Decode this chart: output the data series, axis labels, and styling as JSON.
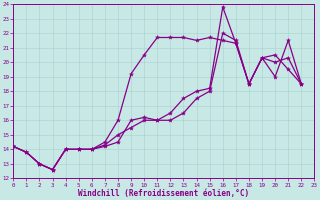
{
  "xlabel": "Windchill (Refroidissement éolien,°C)",
  "xlim": [
    0,
    23
  ],
  "ylim": [
    12,
    24
  ],
  "xticks": [
    0,
    1,
    2,
    3,
    4,
    5,
    6,
    7,
    8,
    9,
    10,
    11,
    12,
    13,
    14,
    15,
    16,
    17,
    18,
    19,
    20,
    21,
    22,
    23
  ],
  "yticks": [
    12,
    13,
    14,
    15,
    16,
    17,
    18,
    19,
    20,
    21,
    22,
    23,
    24
  ],
  "bg_color": "#c8e8e5",
  "grid_color": "#a8d0cc",
  "line_color": "#880088",
  "curves": [
    {
      "x": [
        0,
        1,
        2,
        3,
        4,
        5,
        6,
        7,
        8,
        9,
        10,
        11,
        12,
        13,
        14,
        15,
        16,
        17,
        18,
        19,
        20,
        21,
        22
      ],
      "y": [
        14.2,
        13.8,
        13.0,
        12.6,
        14.0,
        14.0,
        14.0,
        14.2,
        14.5,
        16.0,
        16.2,
        16.0,
        16.5,
        17.5,
        18.0,
        18.2,
        23.8,
        21.3,
        18.5,
        20.3,
        20.0,
        20.3,
        18.5
      ]
    },
    {
      "x": [
        0,
        1,
        2,
        3,
        4,
        5,
        6,
        7,
        8,
        9,
        10,
        11,
        12,
        13,
        14,
        15,
        16,
        17,
        18,
        19,
        20,
        21,
        22
      ],
      "y": [
        14.2,
        13.8,
        13.0,
        12.6,
        14.0,
        14.0,
        14.0,
        14.5,
        16.0,
        19.2,
        20.5,
        21.7,
        21.7,
        21.7,
        21.5,
        21.7,
        21.5,
        21.3,
        18.5,
        20.3,
        19.0,
        21.5,
        18.5
      ]
    },
    {
      "x": [
        0,
        1,
        2,
        3,
        4,
        5,
        6,
        7,
        8,
        9,
        10,
        11,
        12,
        13,
        14,
        15,
        16,
        17,
        18,
        19,
        20,
        21,
        22
      ],
      "y": [
        14.2,
        13.8,
        13.0,
        12.6,
        14.0,
        14.0,
        14.0,
        14.3,
        15.0,
        15.5,
        16.0,
        16.0,
        16.0,
        16.5,
        17.5,
        18.0,
        22.0,
        21.5,
        18.5,
        20.3,
        20.5,
        19.5,
        18.5
      ]
    }
  ],
  "tick_fontsize": 4.2,
  "xlabel_fontsize": 5.5,
  "lw": 0.9,
  "ms": 3.0
}
